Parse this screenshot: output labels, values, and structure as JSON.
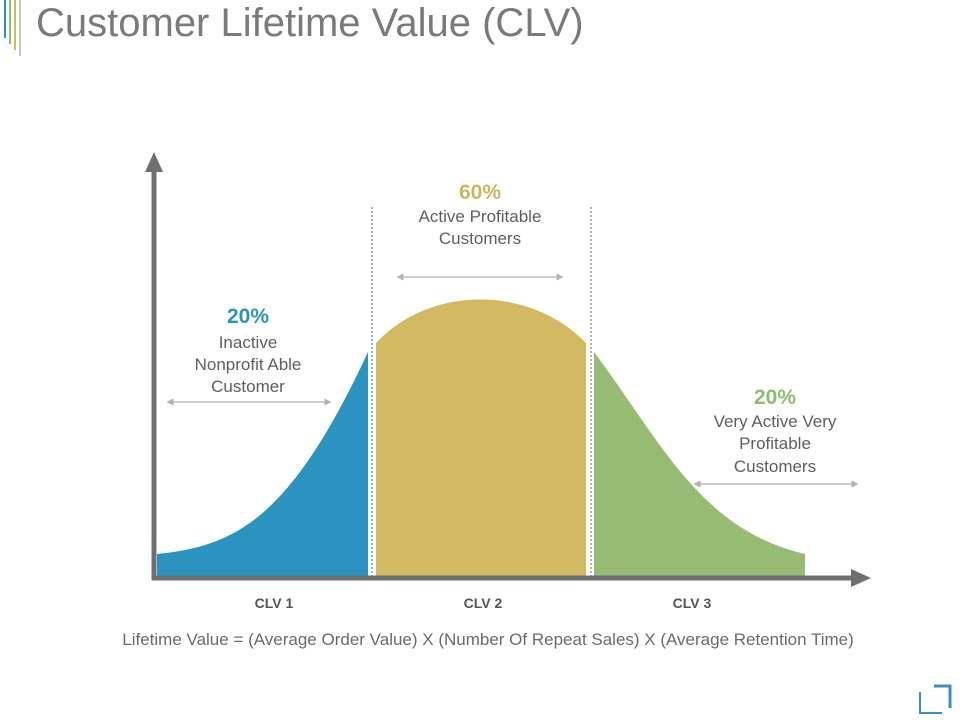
{
  "title": "Customer Lifetime Value (CLV)",
  "colors": {
    "blue": "#2a93c0",
    "gold": "#d2b962",
    "green": "#96bc74",
    "axis": "#6f6f6f",
    "title": "#7a7a7a"
  },
  "segments": [
    {
      "percent": "20%",
      "line1": "Inactive",
      "line2": "Nonprofit Able",
      "line3": "Customer",
      "category": "CLV 1"
    },
    {
      "percent": "60%",
      "line1": "Active Profitable",
      "line2": "Customers",
      "category": "CLV 2"
    },
    {
      "percent": "20%",
      "line1": "Very Active Very",
      "line2": "Profitable",
      "line3": "Customers",
      "category": "CLV 3"
    }
  ],
  "formula": "Lifetime Value = (Average Order Value) X (Number Of Repeat Sales) X (Average Retention Time)"
}
